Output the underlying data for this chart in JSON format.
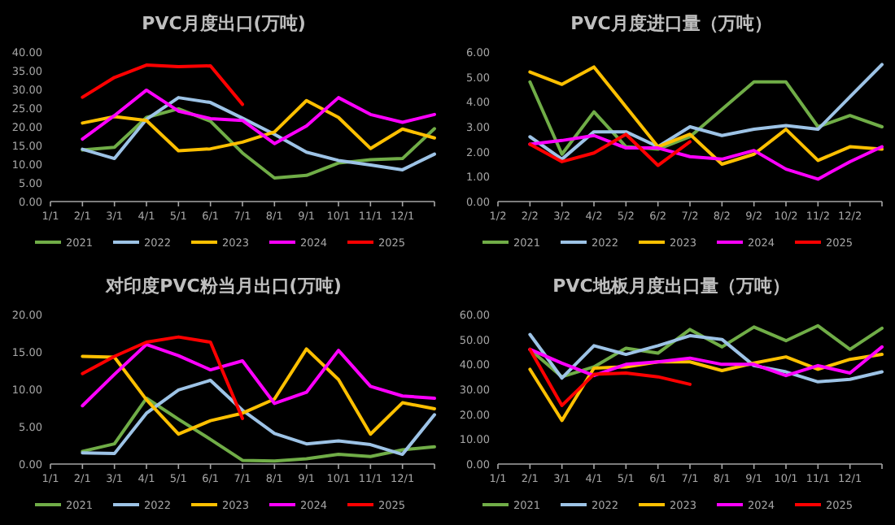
{
  "chart_data": [
    {
      "type": "line",
      "title": "PVC月度出口(万吨)",
      "categories": [
        "1/1",
        "2/1",
        "3/1",
        "4/1",
        "5/1",
        "6/1",
        "7/1",
        "8/1",
        "9/1",
        "10/1",
        "11/1",
        "12/1",
        null
      ],
      "ylim": [
        0,
        40
      ],
      "yticks": [
        {
          "value": 0,
          "label": "0.00"
        },
        {
          "value": 5,
          "label": "5.00"
        },
        {
          "value": 10,
          "label": "10.00"
        },
        {
          "value": 15,
          "label": "15.00"
        },
        {
          "value": 20,
          "label": "20.00"
        },
        {
          "value": 25,
          "label": "25.00"
        },
        {
          "value": 30,
          "label": "30.00"
        },
        {
          "value": 35,
          "label": "35.00"
        },
        {
          "value": 40,
          "label": "40.00"
        }
      ],
      "legend": "bottom",
      "grid": false,
      "series": [
        {
          "name": "2021",
          "color": "#70ad47",
          "values": [
            null,
            13.8,
            14.5,
            22.5,
            24.8,
            21.5,
            13,
            6.3,
            7,
            10.3,
            11.2,
            11.5,
            19.5
          ]
        },
        {
          "name": "2022",
          "color": "#9dc3e6",
          "values": [
            null,
            14,
            11.5,
            22,
            27.8,
            26.5,
            22.3,
            18,
            13.2,
            11,
            9.8,
            8.5,
            12.7
          ]
        },
        {
          "name": "2023",
          "color": "#ffc000",
          "values": [
            null,
            21,
            22.7,
            21.7,
            13.6,
            14.1,
            15.9,
            18.6,
            27,
            22.5,
            14.2,
            19.4,
            17
          ]
        },
        {
          "name": "2024",
          "color": "#ff00ff",
          "values": [
            null,
            16.7,
            23,
            29.8,
            24.2,
            22.2,
            21.7,
            15.5,
            20.2,
            27.8,
            23.3,
            21.2,
            23.3
          ]
        },
        {
          "name": "2025",
          "color": "#ff0000",
          "values": [
            null,
            27.9,
            33.2,
            36.5,
            36.1,
            36.3,
            26,
            null,
            null,
            null,
            null,
            null,
            null
          ]
        }
      ]
    },
    {
      "type": "line",
      "title": "PVC月度进口量（万吨）",
      "categories": [
        "1/2",
        "2/2",
        "3/2",
        "4/2",
        "5/2",
        "6/2",
        "7/2",
        "8/2",
        "9/2",
        "10/2",
        "11/2",
        "12/2",
        null
      ],
      "ylim": [
        0,
        6
      ],
      "yticks": [
        {
          "value": 0,
          "label": "0.00"
        },
        {
          "value": 1,
          "label": "1.00"
        },
        {
          "value": 2,
          "label": "2.00"
        },
        {
          "value": 3,
          "label": "3.00"
        },
        {
          "value": 4,
          "label": "4.00"
        },
        {
          "value": 5,
          "label": "5.00"
        },
        {
          "value": 6,
          "label": "6.00"
        }
      ],
      "legend": "bottom",
      "grid": false,
      "series": [
        {
          "name": "2021",
          "color": "#70ad47",
          "values": [
            null,
            4.8,
            1.9,
            3.6,
            2.2,
            2.1,
            2.6,
            3.7,
            4.8,
            4.8,
            3.0,
            3.45,
            3.0
          ]
        },
        {
          "name": "2022",
          "color": "#9dc3e6",
          "values": [
            null,
            2.6,
            1.7,
            2.8,
            2.8,
            2.2,
            3.0,
            2.65,
            2.9,
            3.05,
            2.9,
            4.2,
            5.5
          ]
        },
        {
          "name": "2023",
          "color": "#ffc000",
          "values": [
            null,
            5.2,
            4.7,
            5.4,
            3.8,
            2.2,
            2.7,
            1.5,
            1.9,
            2.9,
            1.65,
            2.2,
            2.1
          ]
        },
        {
          "name": "2024",
          "color": "#ff00ff",
          "values": [
            null,
            2.3,
            2.45,
            2.65,
            2.15,
            2.15,
            1.8,
            1.7,
            2.05,
            1.3,
            0.9,
            1.6,
            2.2
          ]
        },
        {
          "name": "2025",
          "color": "#ff0000",
          "values": [
            null,
            2.3,
            1.6,
            1.95,
            2.7,
            1.45,
            2.4,
            null,
            null,
            null,
            null,
            null,
            null
          ]
        }
      ]
    },
    {
      "type": "line",
      "title": "对印度PVC粉当月出口(万吨)",
      "categories": [
        "1/1",
        "2/1",
        "3/1",
        "4/1",
        "5/1",
        "6/1",
        "7/1",
        "8/1",
        "9/1",
        "10/1",
        "11/1",
        "12/1",
        null
      ],
      "ylim": [
        0,
        20
      ],
      "yticks": [
        {
          "value": 0,
          "label": "0.00"
        },
        {
          "value": 5,
          "label": "5.00"
        },
        {
          "value": 10,
          "label": "10.00"
        },
        {
          "value": 15,
          "label": "15.00"
        },
        {
          "value": 20,
          "label": "20.00"
        }
      ],
      "legend": "bottom",
      "grid": false,
      "series": [
        {
          "name": "2021",
          "color": "#70ad47",
          "values": [
            null,
            1.7,
            2.7,
            8.8,
            6.0,
            3.3,
            0.5,
            0.4,
            0.7,
            1.3,
            1.0,
            1.9,
            2.3
          ]
        },
        {
          "name": "2022",
          "color": "#9dc3e6",
          "values": [
            null,
            1.5,
            1.4,
            6.8,
            9.9,
            11.2,
            7.2,
            4.1,
            2.7,
            3.1,
            2.6,
            1.3,
            6.6
          ]
        },
        {
          "name": "2023",
          "color": "#ffc000",
          "values": [
            null,
            14.4,
            14.3,
            8.6,
            4.0,
            5.8,
            6.8,
            8.7,
            15.4,
            11.3,
            4.0,
            8.2,
            7.4
          ]
        },
        {
          "name": "2024",
          "color": "#ff00ff",
          "values": [
            null,
            7.8,
            12.0,
            16.0,
            14.5,
            12.6,
            13.8,
            8.1,
            9.6,
            15.2,
            10.4,
            9.1,
            8.8
          ]
        },
        {
          "name": "2025",
          "color": "#ff0000",
          "values": [
            null,
            12.1,
            14.4,
            16.3,
            17.0,
            16.3,
            6.1,
            null,
            null,
            null,
            null,
            null,
            null
          ]
        }
      ]
    },
    {
      "type": "line",
      "title": "PVC地板月度出口量（万吨）",
      "categories": [
        "1/1",
        "2/1",
        "3/1",
        "4/1",
        "5/1",
        "6/1",
        "7/1",
        "8/1",
        "9/1",
        "10/1",
        "11/1",
        "12/1",
        null
      ],
      "ylim": [
        0,
        60
      ],
      "yticks": [
        {
          "value": 0,
          "label": "0.00"
        },
        {
          "value": 10,
          "label": "10.00"
        },
        {
          "value": 20,
          "label": "20.00"
        },
        {
          "value": 30,
          "label": "30.00"
        },
        {
          "value": 40,
          "label": "40.00"
        },
        {
          "value": 50,
          "label": "50.00"
        },
        {
          "value": 60,
          "label": "60.00"
        }
      ],
      "legend": "bottom",
      "grid": false,
      "series": [
        {
          "name": "2021",
          "color": "#70ad47",
          "values": [
            null,
            46,
            35,
            39,
            46.5,
            44.5,
            54,
            47,
            55,
            49.5,
            55.5,
            46,
            54.5
          ]
        },
        {
          "name": "2022",
          "color": "#9dc3e6",
          "values": [
            null,
            52,
            34.5,
            47.5,
            44,
            47.5,
            51.5,
            50,
            39.5,
            37,
            33,
            34,
            37
          ]
        },
        {
          "name": "2023",
          "color": "#ffc000",
          "values": [
            null,
            38,
            17.5,
            38.5,
            39,
            41,
            41,
            37.5,
            40.5,
            43,
            38,
            42,
            44
          ]
        },
        {
          "name": "2024",
          "color": "#ff00ff",
          "values": [
            null,
            46,
            40.5,
            35.5,
            40,
            41,
            42.5,
            40,
            40,
            35.5,
            39.5,
            36.5,
            47
          ]
        },
        {
          "name": "2025",
          "color": "#ff0000",
          "values": [
            null,
            46,
            23.5,
            36,
            36.5,
            35,
            32,
            null,
            null,
            null,
            null,
            null,
            null
          ]
        }
      ]
    }
  ]
}
